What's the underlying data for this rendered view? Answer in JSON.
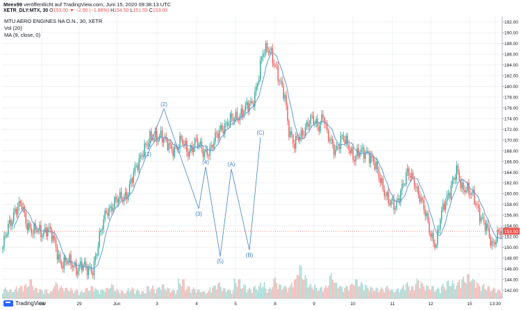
{
  "header": {
    "author": "Meex99",
    "published": "veröffentlicht auf TradingView.com, Juni 15, 2020 09:38:13 UTC",
    "symbol": "XETR_DLY:MTX, 30",
    "o_label": "O",
    "o_value": "153.00",
    "change": "▼ −2.90 (−1.86%)",
    "h_label": "H",
    "h_value": "154.50",
    "l_label": "L",
    "l_value": "151.55",
    "c_label": "C",
    "c_value": "153.00"
  },
  "legend": {
    "title": "MTU AERO ENGINES NA O.N., 30, XETR",
    "vol": "Vol (20)",
    "ma": "MA (9, close, 0)"
  },
  "footer": {
    "brand": "TradingView"
  },
  "colors": {
    "up": "#26a69a",
    "down": "#ef5350",
    "ma": "#5b9bd5",
    "wave": "#3f82c4",
    "grid": "#eef0f3"
  },
  "chart_data": {
    "type": "candlestick",
    "ylim": [
      140.5,
      193
    ],
    "y_ticks": [
      "142.00",
      "144.00",
      "146.00",
      "148.00",
      "150.00",
      "152.00",
      "154.00",
      "156.00",
      "158.00",
      "160.00",
      "162.00",
      "164.00",
      "166.00",
      "168.00",
      "170.00",
      "172.00",
      "174.00",
      "176.00",
      "178.00",
      "180.00",
      "182.00",
      "184.00",
      "186.00",
      "188.00",
      "190.00",
      "192.00"
    ],
    "x_ticks": [
      "28",
      "29",
      "Jun",
      "3",
      "4",
      "5",
      "8",
      "9",
      "10",
      "11",
      "12",
      "15",
      "13:30"
    ],
    "last_price": "153.00",
    "price_anchors": [
      [
        0,
        149.5
      ],
      [
        4,
        154
      ],
      [
        9,
        157
      ],
      [
        14,
        157.6
      ],
      [
        17,
        155
      ],
      [
        22,
        153
      ],
      [
        28,
        152.7
      ],
      [
        33,
        153.8
      ],
      [
        38,
        150.5
      ],
      [
        42,
        147.5
      ],
      [
        48,
        147
      ],
      [
        54,
        146.3
      ],
      [
        57,
        146.8
      ],
      [
        62,
        145.5
      ],
      [
        66,
        146.2
      ],
      [
        72,
        152.5
      ],
      [
        76,
        157
      ],
      [
        84,
        158.5
      ],
      [
        92,
        160.5
      ],
      [
        97,
        164
      ],
      [
        102,
        168
      ],
      [
        107,
        169.5
      ],
      [
        112,
        171
      ],
      [
        116,
        171
      ],
      [
        120,
        169
      ],
      [
        126,
        168.5
      ],
      [
        131,
        169.5
      ],
      [
        136,
        168
      ],
      [
        141,
        169.5
      ],
      [
        147,
        168
      ],
      [
        153,
        168.2
      ],
      [
        160,
        172.5
      ],
      [
        166,
        173
      ],
      [
        172,
        174.7
      ],
      [
        178,
        175.5
      ],
      [
        183,
        177
      ],
      [
        187,
        181
      ],
      [
        191,
        186
      ],
      [
        196,
        187.5
      ],
      [
        199,
        184.5
      ],
      [
        203,
        180.5
      ],
      [
        207,
        178.5
      ],
      [
        210,
        172
      ],
      [
        214,
        168.5
      ],
      [
        217,
        170.5
      ],
      [
        222,
        172.5
      ],
      [
        227,
        173.5
      ],
      [
        232,
        173
      ],
      [
        235,
        174.8
      ],
      [
        238,
        170.5
      ],
      [
        244,
        168.5
      ],
      [
        249,
        170
      ],
      [
        254,
        169
      ],
      [
        258,
        166.8
      ],
      [
        263,
        167.5
      ],
      [
        268,
        168
      ],
      [
        273,
        165
      ],
      [
        279,
        161.5
      ],
      [
        284,
        158
      ],
      [
        288,
        157.3
      ],
      [
        292,
        161
      ],
      [
        297,
        163.5
      ],
      [
        302,
        162.5
      ],
      [
        306,
        159.5
      ],
      [
        310,
        156
      ],
      [
        313,
        153.5
      ],
      [
        316,
        151.5
      ],
      [
        318,
        150.5
      ],
      [
        321,
        155
      ],
      [
        325,
        159
      ],
      [
        329,
        161.5
      ],
      [
        333,
        163.8
      ],
      [
        337,
        161.2
      ],
      [
        340,
        161.5
      ],
      [
        344,
        159.5
      ],
      [
        348,
        157.5
      ],
      [
        352,
        155.5
      ],
      [
        355,
        153.5
      ],
      [
        357,
        151.5
      ],
      [
        359,
        150
      ],
      [
        361,
        151.5
      ],
      [
        364,
        153.5
      ],
      [
        366,
        153
      ]
    ],
    "volume_profile": [
      0.3,
      0.25,
      0.35,
      0.4,
      0.55,
      0.3,
      0.25,
      0.2,
      0.45,
      0.35,
      0.3,
      0.25,
      0.2,
      0.3,
      0.35,
      0.25,
      0.3,
      0.4,
      0.25,
      0.2,
      0.3,
      0.25,
      0.2,
      0.35,
      0.3,
      0.4,
      0.3,
      0.25,
      0.55,
      0.35,
      0.3,
      0.25,
      0.2,
      0.35,
      0.45,
      0.3,
      0.25,
      0.55,
      0.4,
      0.3,
      0.35,
      0.45,
      0.3,
      0.6,
      0.4,
      0.35,
      0.55,
      0.95,
      0.65,
      0.4,
      0.3,
      0.35,
      0.7,
      0.45,
      0.35,
      0.4,
      0.55,
      0.45,
      0.35,
      0.3,
      0.3,
      0.35,
      0.25,
      0.3,
      0.45,
      0.35,
      0.55,
      0.4,
      0.35,
      0.3,
      0.4,
      0.5,
      0.45,
      0.6,
      0.7,
      0.55,
      0.4,
      0.35,
      0.3,
      0.25
    ],
    "ma_period": 9,
    "waves": [
      {
        "label": "(1)",
        "x": 213,
        "price": 168.3
      },
      {
        "label": "(2)",
        "x": 236,
        "price": 175.8
      },
      {
        "label": "(3)",
        "x": 286,
        "price": 157.2
      },
      {
        "label": "(4)",
        "x": 296,
        "price": 165.0
      },
      {
        "label": "(5)",
        "x": 317,
        "price": 148.3
      },
      {
        "label": "(A)",
        "x": 333,
        "price": 164.6
      },
      {
        "label": "(B)",
        "x": 359,
        "price": 149.5
      },
      {
        "label": "(C)",
        "x": 375,
        "price": 170.5
      }
    ]
  }
}
